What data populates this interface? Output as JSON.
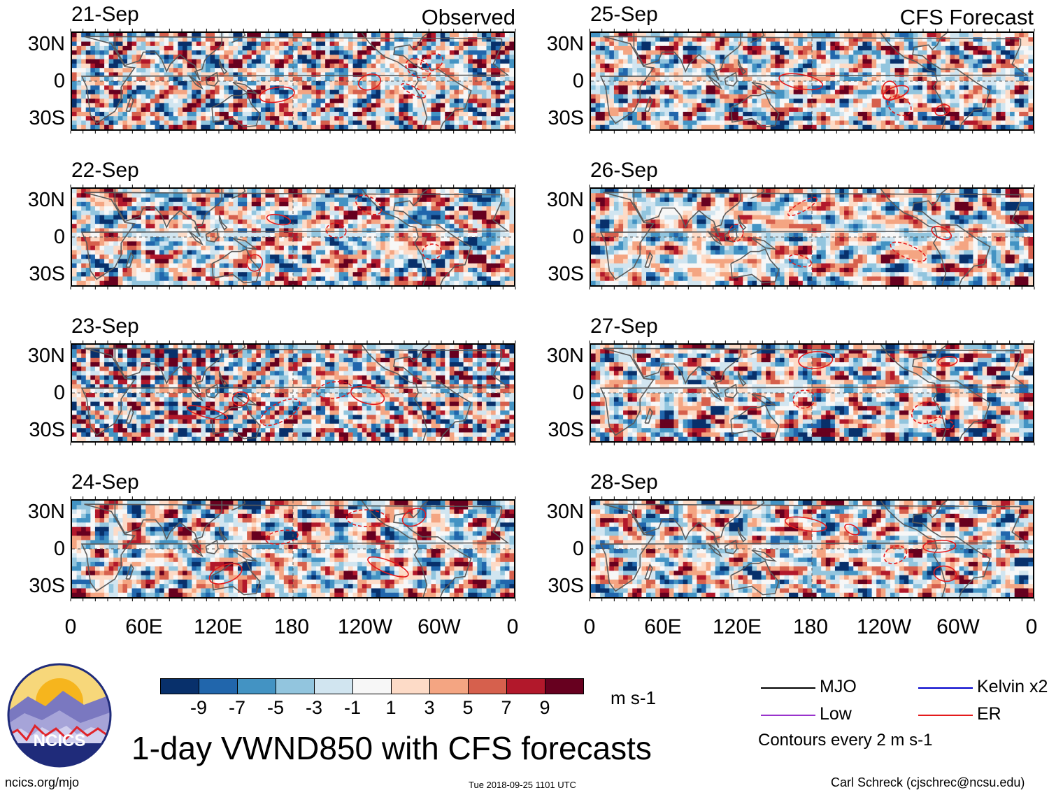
{
  "chart_data": {
    "type": "heatmap",
    "title": "1-day VWND850 with CFS forecasts",
    "variable": "850 hPa meridional wind (VWND850)",
    "units": "m s-1",
    "panel_groups": [
      {
        "label": "Observed",
        "dates": [
          "21-Sep",
          "22-Sep",
          "23-Sep",
          "24-Sep"
        ]
      },
      {
        "label": "CFS Forecast",
        "dates": [
          "25-Sep",
          "26-Sep",
          "27-Sep",
          "28-Sep"
        ]
      }
    ],
    "lat_ticks": [
      "30N",
      "0",
      "30S"
    ],
    "lon_ticks": [
      "0",
      "60E",
      "120E",
      "180",
      "120W",
      "60W",
      "0"
    ],
    "lat_range": [
      -40,
      40
    ],
    "lon_range": [
      0,
      360
    ],
    "colorbar": {
      "ticks": [
        "-9",
        "-7",
        "-5",
        "-3",
        "-1",
        "1",
        "3",
        "5",
        "7",
        "9"
      ],
      "colors": [
        "#08306b",
        "#2166ac",
        "#4393c3",
        "#92c5de",
        "#d1e5f0",
        "#f7f7f7",
        "#fddbc7",
        "#f4a582",
        "#d6604d",
        "#b2182b",
        "#67001f"
      ]
    },
    "legend": [
      {
        "label": "MJO",
        "color": "#000000"
      },
      {
        "label": "Kelvin x2",
        "color": "#0000cc"
      },
      {
        "label": "Low",
        "color": "#9933cc"
      },
      {
        "label": "ER",
        "color": "#e41a1c"
      }
    ],
    "contour_note": "Contours every 2 m s-1"
  },
  "footer": {
    "site": "ncics.org/mjo",
    "timestamp": "Tue 2018-09-25 1101 UTC",
    "author": "Carl Schreck (cjschrec@ncsu.edu)"
  },
  "logo": {
    "text": "NCICS",
    "colors": {
      "sun": "#f6b51d",
      "sky": "#f7d77a",
      "mountain": "#6f6fb5",
      "ring": "#2b3a8c"
    }
  }
}
